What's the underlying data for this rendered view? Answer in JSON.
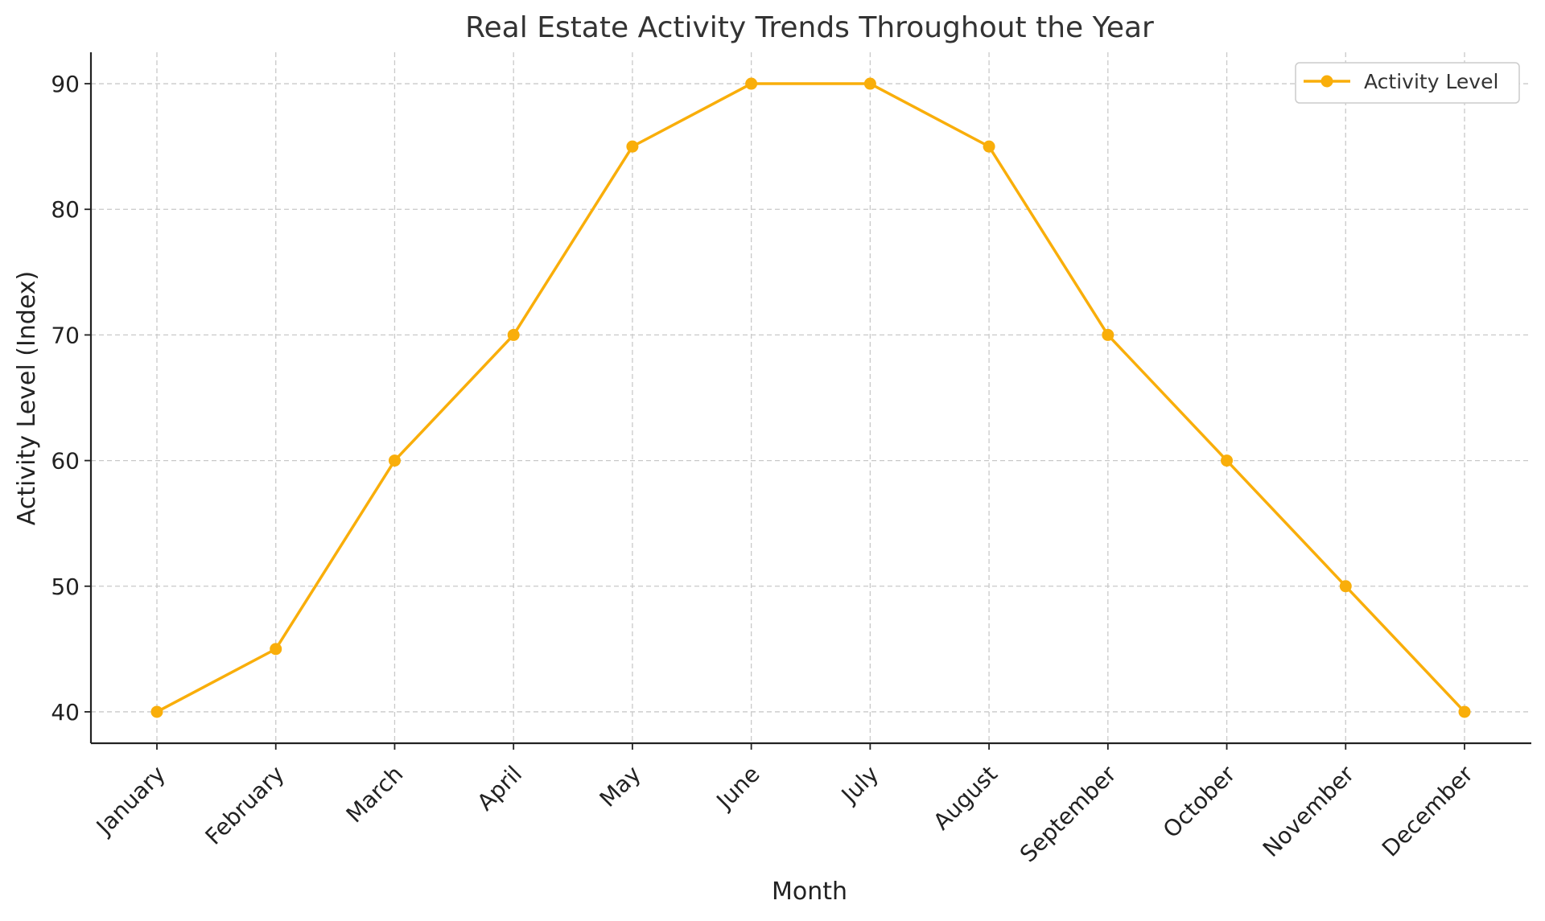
{
  "chart_data": {
    "type": "line",
    "title": "Real Estate Activity Trends Throughout the Year",
    "xlabel": "Month",
    "ylabel": "Activity Level (Index)",
    "categories": [
      "January",
      "February",
      "March",
      "April",
      "May",
      "June",
      "July",
      "August",
      "September",
      "October",
      "November",
      "December"
    ],
    "series": [
      {
        "name": "Activity Level",
        "color": "#F9AE0A",
        "marker": "circle",
        "values": [
          40,
          45,
          60,
          70,
          85,
          90,
          90,
          85,
          70,
          60,
          50,
          40
        ]
      }
    ],
    "ylim": [
      37.5,
      92.5
    ],
    "yticks": [
      40,
      50,
      60,
      70,
      80,
      90
    ],
    "grid": true,
    "legend": "top-right",
    "x_tick_rotation": 45
  }
}
